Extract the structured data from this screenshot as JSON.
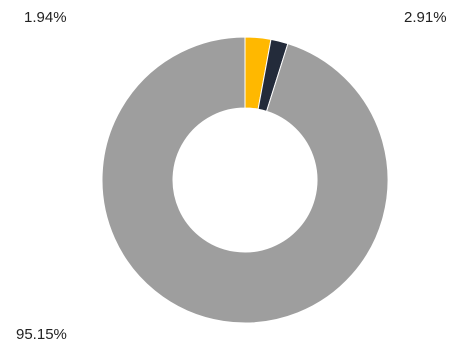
{
  "chart_data": {
    "type": "pie",
    "style": "donut",
    "legend": "none",
    "slices": [
      {
        "value": 2.91,
        "label": "2.91%",
        "color": "#FFB800"
      },
      {
        "value": 1.94,
        "label": "1.94%",
        "color": "#232B3A"
      },
      {
        "value": 95.15,
        "label": "95.15%",
        "color": "#9E9E9E"
      }
    ]
  }
}
